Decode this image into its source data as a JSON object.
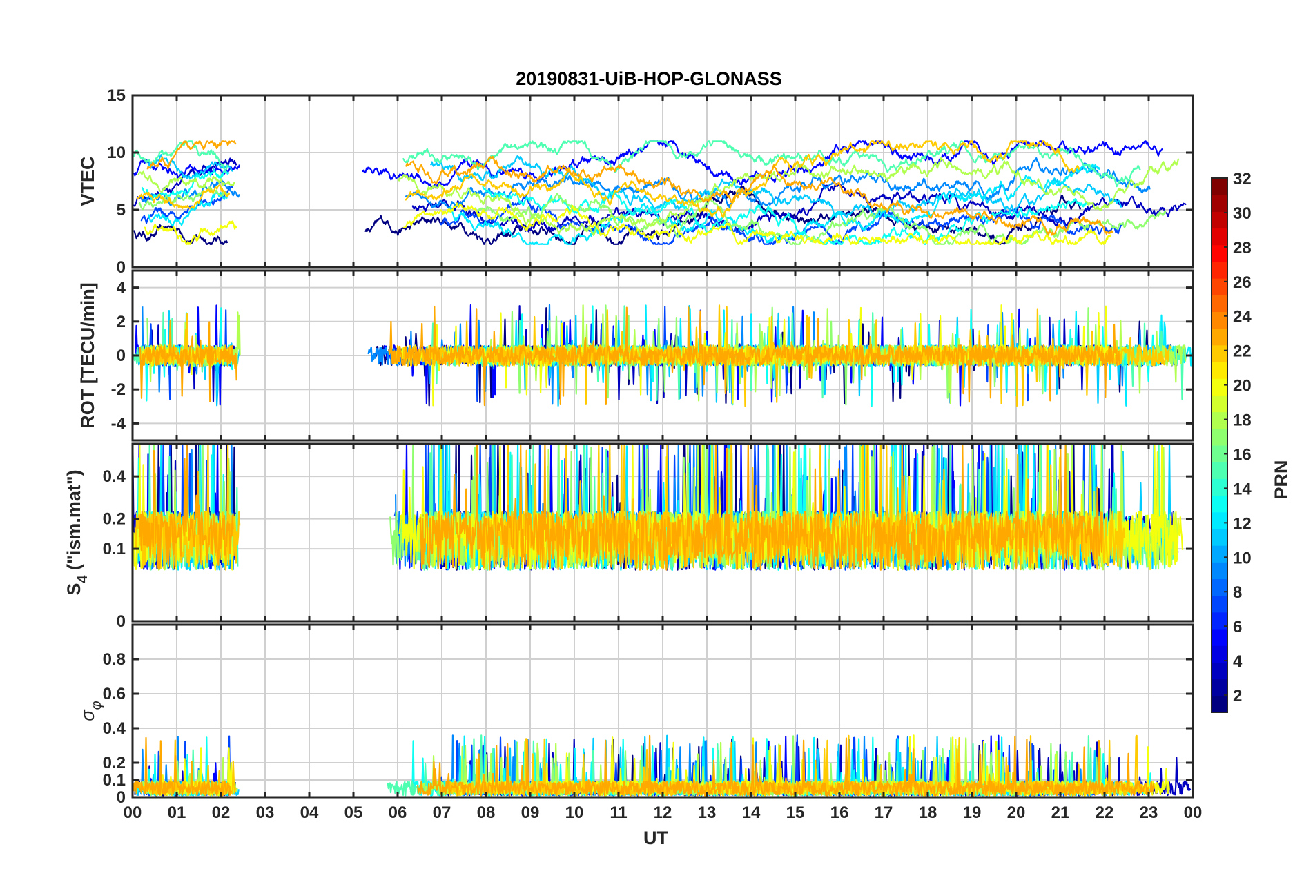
{
  "chart_data": {
    "type": "line",
    "title": "20190831-UiB-HOP-GLONASS",
    "xlabel": "UT",
    "x_ticks": [
      "00",
      "01",
      "02",
      "03",
      "04",
      "05",
      "06",
      "07",
      "08",
      "09",
      "10",
      "11",
      "12",
      "13",
      "14",
      "15",
      "16",
      "17",
      "18",
      "19",
      "20",
      "21",
      "22",
      "23",
      "00"
    ],
    "xlim": [
      0,
      24
    ],
    "grid": true,
    "data_gap": [
      2.45,
      5.2
    ],
    "panels": [
      {
        "key": "vtec",
        "ylabel": "VTEC",
        "ylim": [
          0,
          15
        ],
        "yticks": [
          0,
          5,
          10,
          15
        ],
        "y_tick_labels": [
          "0",
          "5",
          "10",
          "15"
        ],
        "kind": "level",
        "typical_range": [
          3,
          10
        ]
      },
      {
        "key": "rot",
        "ylabel": "ROT [TECU/min]",
        "ylim": [
          -5,
          5
        ],
        "yticks": [
          -4,
          -2,
          0,
          2,
          4
        ],
        "y_tick_labels": [
          "-4",
          "-2",
          "0",
          "2",
          "4"
        ],
        "kind": "fluctuation",
        "typical_range": [
          -1,
          1
        ]
      },
      {
        "key": "s4",
        "ylabel": "S4 (\"ism.mat\")",
        "ylabel_main": "S",
        "ylabel_sub": "4",
        "ylabel_rest": " (\"ism.mat\")",
        "ylim": [
          0,
          0.6
        ],
        "yticks": [
          0,
          0.1,
          0.2,
          0.4
        ],
        "y_tick_labels": [
          "0",
          "0.1",
          "0.2",
          "0.4"
        ],
        "scale": "sqrt",
        "kind": "index",
        "typical_range": [
          0.05,
          0.35
        ]
      },
      {
        "key": "sigma",
        "ylabel": "σφ",
        "ylabel_main": "σ",
        "ylabel_sub": "φ",
        "ylim": [
          0,
          1
        ],
        "yticks": [
          0,
          0.1,
          0.2,
          0.4,
          0.6,
          0.8
        ],
        "y_tick_labels": [
          "0",
          "0.1",
          "0.2",
          "0.4",
          "0.6",
          "0.8"
        ],
        "kind": "index",
        "typical_range": [
          0.01,
          0.15
        ]
      }
    ],
    "colorbar": {
      "label": "PRN",
      "range": [
        1,
        32
      ],
      "ticks": [
        "2",
        "4",
        "6",
        "8",
        "10",
        "12",
        "14",
        "16",
        "18",
        "20",
        "22",
        "24",
        "26",
        "28",
        "30",
        "32"
      ],
      "colormap": "jet"
    },
    "series_prns": [
      1,
      3,
      5,
      7,
      9,
      11,
      12,
      13,
      15,
      17,
      18,
      20,
      22,
      23
    ]
  }
}
